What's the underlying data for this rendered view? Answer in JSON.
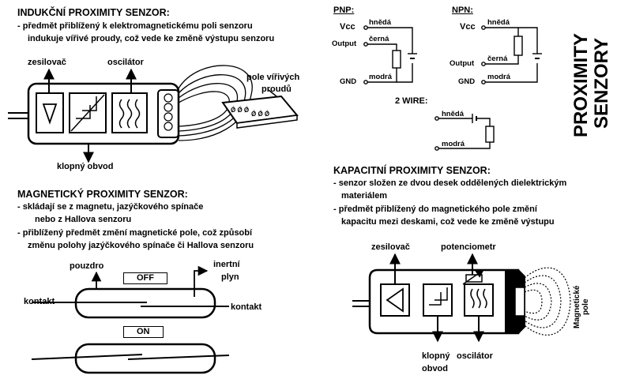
{
  "title": {
    "line1": "PROXIMITY",
    "line2": "SENZORY"
  },
  "inductive": {
    "heading": "INDUKČNÍ PROXIMITY SENZOR:",
    "desc1": "- předmět přiblížený k elektromagnetickému poli senzoru",
    "desc2": "indukuje vířivé proudy, což vede ke změně výstupu senzoru",
    "label_amplifier": "zesilovač",
    "label_oscillator": "oscilátor",
    "label_trigger": "klopný obvod",
    "label_field_1": "pole vířivých",
    "label_field_2": "proudů"
  },
  "magnetic": {
    "heading": "MAGNETICKÝ PROXIMITY SENZOR:",
    "desc1": "- skládají se z magnetu, jazýčkového spínače",
    "desc2": "nebo z Hallova senzoru",
    "desc3": "- přiblížený předmět změní magnetické pole, což způsobí",
    "desc4": "změnu polohy jazýčkového spínače či Hallova senzoru",
    "label_housing": "pouzdro",
    "label_inert_1": "inertní",
    "label_inert_2": "plyn",
    "label_off": "OFF",
    "label_on": "ON",
    "label_contact_left": "kontakt",
    "label_contact_right": "kontakt"
  },
  "wiring": {
    "pnp": "PNP:",
    "npn": "NPN:",
    "two_wire": "2 WIRE:",
    "vcc": "Vcc",
    "output": "Output",
    "gnd": "GND",
    "brown": "hnědá",
    "black": "černá",
    "blue": "modrá"
  },
  "capacitive": {
    "heading": "KAPACITNÍ PROXIMITY SENZOR:",
    "desc1": "- senzor složen ze dvou desek oddělených dielektrickým",
    "desc2": "materiálem",
    "desc3": "-  předmět  přiblížený do magnetického pole změní",
    "desc4": "kapacitu mezi deskami, což vede ke změně výstupu",
    "label_amplifier": "zesilovač",
    "label_potentiometer": "potenciometr",
    "label_trigger_1": "klopný",
    "label_trigger_2": "obvod",
    "label_oscillator": "oscilátor",
    "label_field_1": "Magnetické",
    "label_field_2": "pole"
  }
}
